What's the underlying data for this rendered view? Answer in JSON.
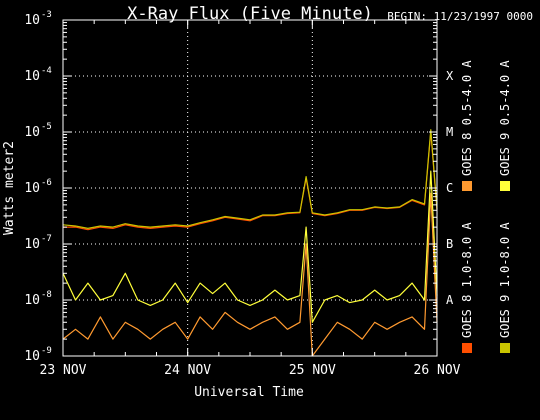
{
  "chart_data": {
    "type": "line",
    "title": "X-Ray Flux (Five Minute)",
    "begin_label": "BEGIN: 11/23/1997 0000",
    "xlabel": "Universal Time",
    "ylabel": "Watts meter2",
    "x_ticks": [
      "23 NOV",
      "24 NOV",
      "25 NOV",
      "26 NOV"
    ],
    "x_range_days": [
      0,
      3
    ],
    "y_scale": "log",
    "y_range": [
      1e-09,
      0.001
    ],
    "y_ticks": [
      {
        "base": "10",
        "exp": "-9"
      },
      {
        "base": "10",
        "exp": "-8"
      },
      {
        "base": "10",
        "exp": "-7"
      },
      {
        "base": "10",
        "exp": "-6"
      },
      {
        "base": "10",
        "exp": "-5"
      },
      {
        "base": "10",
        "exp": "-4"
      },
      {
        "base": "10",
        "exp": "-3"
      }
    ],
    "flare_classes": [
      {
        "label": "A",
        "value": 1e-08
      },
      {
        "label": "B",
        "value": 1e-07
      },
      {
        "label": "C",
        "value": 1e-06
      },
      {
        "label": "M",
        "value": 1e-05
      },
      {
        "label": "X",
        "value": 0.0001
      }
    ],
    "grid": "dotted at day boundaries and class levels",
    "legend_position": "right, vertical",
    "legend": [
      {
        "name": "GOES 8  1.0-8.0 A",
        "color": "#ff4e00"
      },
      {
        "name": "GOES 8  0.5-4.0 A",
        "color": "#ff9a30"
      },
      {
        "name": "GOES 9  1.0-8.0 A",
        "color": "#c9c400"
      },
      {
        "name": "GOES 9  0.5-4.0 A",
        "color": "#ffff3a"
      }
    ],
    "series": [
      {
        "name": "GOES 8  1.0-8.0 A",
        "color": "#ff4e00",
        "x_days": [
          0,
          0.1,
          0.2,
          0.3,
          0.4,
          0.5,
          0.6,
          0.7,
          0.8,
          0.9,
          1.0,
          1.1,
          1.2,
          1.3,
          1.4,
          1.5,
          1.6,
          1.7,
          1.8,
          1.9,
          1.95,
          2.0,
          2.1,
          2.2,
          2.3,
          2.4,
          2.5,
          2.6,
          2.7,
          2.8,
          2.9,
          2.95,
          3.0
        ],
        "y": [
          2e-07,
          2e-07,
          1.8e-07,
          2e-07,
          1.9e-07,
          2.2e-07,
          2e-07,
          1.9e-07,
          2e-07,
          2.1e-07,
          2e-07,
          2.3e-07,
          2.6e-07,
          3e-07,
          2.8e-07,
          2.6e-07,
          3.2e-07,
          3.2e-07,
          3.5e-07,
          3.6e-07,
          1.5e-06,
          3.5e-07,
          3.2e-07,
          3.5e-07,
          4e-07,
          4e-07,
          4.5e-07,
          4.3e-07,
          4.5e-07,
          6e-07,
          5e-07,
          1e-05,
          4e-07
        ]
      },
      {
        "name": "GOES 8  0.5-4.0 A",
        "color": "#ff9a30",
        "x_days": [
          0,
          0.1,
          0.2,
          0.3,
          0.4,
          0.5,
          0.6,
          0.7,
          0.8,
          0.9,
          1.0,
          1.1,
          1.2,
          1.3,
          1.4,
          1.5,
          1.6,
          1.7,
          1.8,
          1.9,
          1.95,
          2.0,
          2.1,
          2.2,
          2.3,
          2.4,
          2.5,
          2.6,
          2.7,
          2.8,
          2.9,
          2.95,
          3.0
        ],
        "y": [
          2e-09,
          3e-09,
          2e-09,
          5e-09,
          2e-09,
          4e-09,
          3e-09,
          2e-09,
          3e-09,
          4e-09,
          2e-09,
          5e-09,
          3e-09,
          6e-09,
          4e-09,
          3e-09,
          4e-09,
          5e-09,
          3e-09,
          4e-09,
          1e-07,
          1e-09,
          2e-09,
          4e-09,
          3e-09,
          2e-09,
          4e-09,
          3e-09,
          4e-09,
          5e-09,
          3e-09,
          8e-07,
          4e-09
        ]
      },
      {
        "name": "GOES 9  1.0-8.0 A",
        "color": "#c9c400",
        "x_days": [
          0,
          0.1,
          0.2,
          0.3,
          0.4,
          0.5,
          0.6,
          0.7,
          0.8,
          0.9,
          1.0,
          1.1,
          1.2,
          1.3,
          1.4,
          1.5,
          1.6,
          1.7,
          1.8,
          1.9,
          1.95,
          2.0,
          2.1,
          2.2,
          2.3,
          2.4,
          2.5,
          2.6,
          2.7,
          2.8,
          2.9,
          2.95,
          3.0
        ],
        "y": [
          2.2e-07,
          2.1e-07,
          1.9e-07,
          2.1e-07,
          2e-07,
          2.3e-07,
          2.1e-07,
          2e-07,
          2.1e-07,
          2.2e-07,
          2.1e-07,
          2.4e-07,
          2.7e-07,
          3.1e-07,
          2.9e-07,
          2.7e-07,
          3.3e-07,
          3.3e-07,
          3.6e-07,
          3.7e-07,
          1.6e-06,
          3.6e-07,
          3.3e-07,
          3.6e-07,
          4.1e-07,
          4.1e-07,
          4.6e-07,
          4.4e-07,
          4.6e-07,
          6.2e-07,
          5.2e-07,
          1.1e-05,
          4.2e-07
        ]
      },
      {
        "name": "GOES 9  0.5-4.0 A",
        "color": "#ffff3a",
        "x_days": [
          0,
          0.1,
          0.2,
          0.3,
          0.4,
          0.5,
          0.6,
          0.7,
          0.8,
          0.9,
          1.0,
          1.1,
          1.2,
          1.3,
          1.4,
          1.5,
          1.6,
          1.7,
          1.8,
          1.9,
          1.95,
          2.0,
          2.1,
          2.2,
          2.3,
          2.4,
          2.5,
          2.6,
          2.7,
          2.8,
          2.9,
          2.95,
          3.0
        ],
        "y": [
          3e-08,
          1e-08,
          2e-08,
          1e-08,
          1.2e-08,
          3e-08,
          1e-08,
          8e-09,
          1e-08,
          2e-08,
          9e-09,
          2e-08,
          1.3e-08,
          2e-08,
          1e-08,
          8e-09,
          1e-08,
          1.5e-08,
          1e-08,
          1.2e-08,
          2e-07,
          4e-09,
          1e-08,
          1.2e-08,
          9e-09,
          1e-08,
          1.5e-08,
          1e-08,
          1.2e-08,
          2e-08,
          1e-08,
          2e-06,
          1.2e-08
        ]
      }
    ]
  }
}
